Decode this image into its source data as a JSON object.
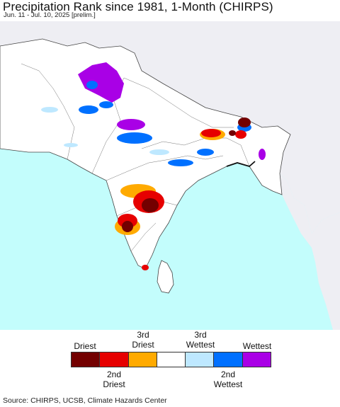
{
  "header": {
    "title": "Precipitation Rank since 1981, 1-Month (CHIRPS)",
    "subtitle": "Jun. 11 - Jul. 10, 2025 [prelim.]"
  },
  "map": {
    "ocean_color": "#c3fdfc",
    "land_in_domain_color": "#ffffff",
    "land_out_domain_color": "#eeeef3",
    "border_color": "#555555"
  },
  "legend": {
    "top_labels": [
      "Driest",
      "3rd\nDriest",
      "3rd\nWettest",
      "Wettest"
    ],
    "bottom_labels": [
      "2nd\nDriest",
      "2nd\nWettest"
    ],
    "categories": [
      {
        "color": "#730000"
      },
      {
        "color": "#e60000"
      },
      {
        "color": "#ffaa00"
      },
      {
        "color": "#ffffff"
      },
      {
        "color": "#bee8ff"
      },
      {
        "color": "#0070ff"
      },
      {
        "color": "#a900e6"
      }
    ]
  },
  "footer": {
    "source": "Source: CHIRPS, UCSB, Climate Hazards Center"
  }
}
